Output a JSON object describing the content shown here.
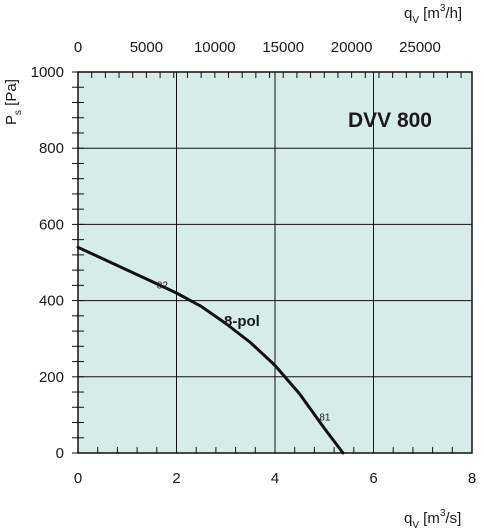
{
  "chart_data": {
    "type": "line",
    "title": "DVV 800",
    "x_bottom": {
      "label_main": "q",
      "label_sub": "V",
      "label_unit_pre": " [m",
      "label_unit_sup": "3",
      "label_unit_post": "/s]",
      "range": [
        0,
        8
      ],
      "ticks": [
        "0",
        "2",
        "4",
        "6",
        "8"
      ]
    },
    "x_top": {
      "label_main": "q",
      "label_sub": "V",
      "label_unit_pre": " [m",
      "label_unit_sup": "3",
      "label_unit_post": "/h]",
      "range": [
        0,
        28800
      ],
      "ticks": [
        "0",
        "5000",
        "10000",
        "15000",
        "20000",
        "25000"
      ]
    },
    "y": {
      "label_main": "P",
      "label_sub": "s",
      "label_unit": " [Pa]",
      "range": [
        0,
        1000
      ],
      "ticks": [
        "0",
        "200",
        "400",
        "600",
        "800",
        "1000"
      ]
    },
    "grid": true,
    "background_color": "#d7ece8",
    "line_color": "#111111",
    "series": [
      {
        "name": "8-pol",
        "x": [
          0,
          0.5,
          1.0,
          1.5,
          2.0,
          2.5,
          3.0,
          3.5,
          4.0,
          4.5,
          5.0,
          5.38
        ],
        "y": [
          540,
          510,
          480,
          450,
          420,
          385,
          340,
          290,
          230,
          155,
          65,
          0
        ]
      }
    ],
    "annotations": [
      {
        "text": "82",
        "x": 1.6,
        "y": 463
      },
      {
        "text": "81",
        "x": 4.9,
        "y": 117
      }
    ]
  }
}
